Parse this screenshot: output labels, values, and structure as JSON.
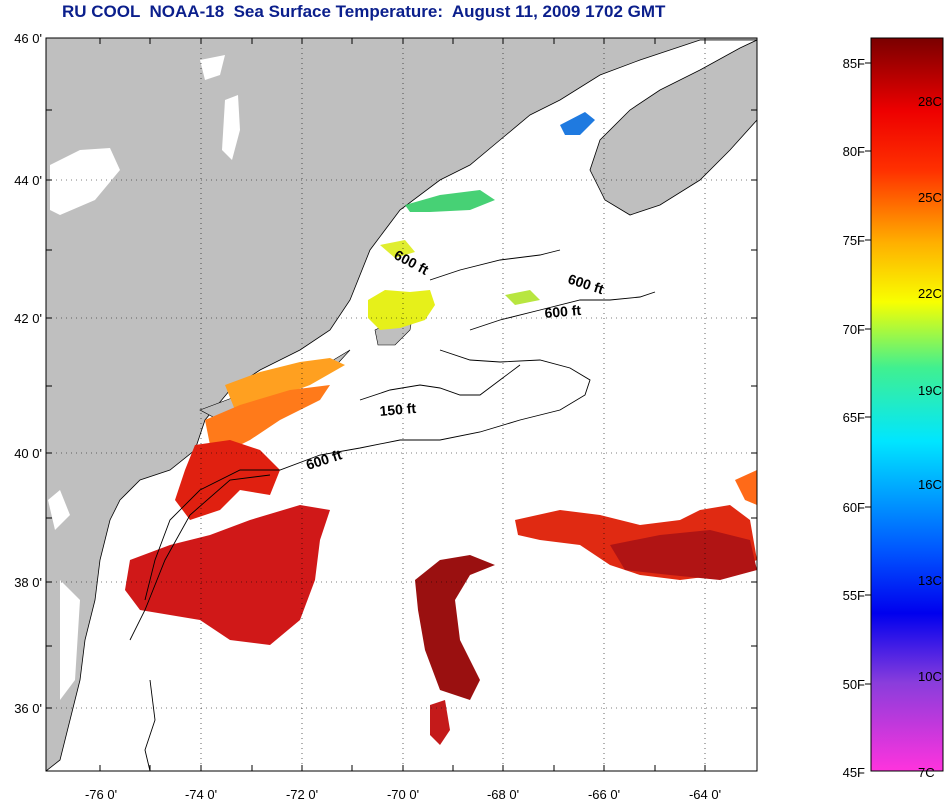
{
  "title": "RU COOL  NOAA-18  Sea Surface Temperature:  August 11, 2009 1702 GMT",
  "map": {
    "lat_labels": [
      "46 0'",
      "44 0'",
      "42 0'",
      "40 0'",
      "38 0'",
      "36 0'"
    ],
    "lon_labels": [
      "-76 0'",
      "-74 0'",
      "-72 0'",
      "-70 0'",
      "-68 0'",
      "-66 0'",
      "-64 0'"
    ],
    "contour_labels": [
      "600 ft",
      "600 ft",
      "600 ft",
      "150 ft",
      "600 ft"
    ],
    "colors": {
      "land": "#bfbfbf",
      "ocean": "#ffffff",
      "title": "#0b1f8c"
    }
  },
  "colorbar": {
    "fahrenheit_labels": [
      "85F",
      "80F",
      "75F",
      "70F",
      "65F",
      "60F",
      "55F",
      "50F",
      "45F"
    ],
    "celsius_labels": [
      "28C",
      "25C",
      "22C",
      "19C",
      "16C",
      "13C",
      "10C",
      "7C"
    ]
  }
}
